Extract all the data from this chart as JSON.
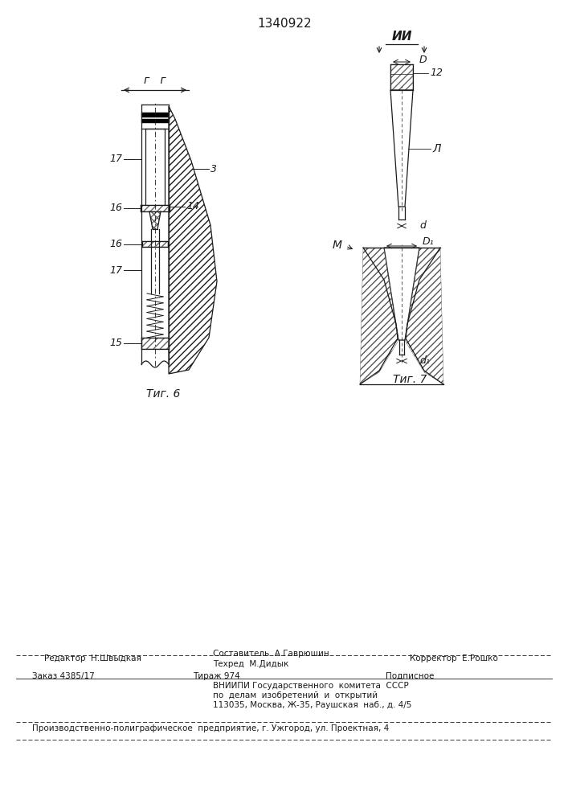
{
  "patent_number": "1340922",
  "fig6_label": "Τиг. 6",
  "fig7_label": "Τиг. 7",
  "section_g": "г   г",
  "section_II": "ИИ",
  "section_L": "Л",
  "section_M": "М",
  "dim_D": "D",
  "dim_d": "d",
  "dim_D1": "D₁",
  "dim_d1": "d₁",
  "lbl_17a": "17",
  "lbl_16a": "16",
  "lbl_16b": "16",
  "lbl_17b": "17",
  "lbl_15": "15",
  "lbl_3": "3",
  "lbl_14": "14",
  "lbl_12": "12",
  "footer_editor": "Редактор  Н.Швыдкая",
  "footer_sostavitel": "Составитель  А.Гаврюшин",
  "footer_tekhred": "Техред  М.Дидык",
  "footer_korrektor": "Корректор  Е.Рошко",
  "footer_zakaz": "Заказ 4385/17",
  "footer_tirazh": "Тираж 974",
  "footer_podpisnoe": "Подписное",
  "footer_vniipei": "ВНИИПИ Государственного  комитета  СССР",
  "footer_po_delam": "по  делам  изобретений  и  открытий",
  "footer_address": "113035, Москва, Ж-35, Раушская  наб., д. 4/5",
  "footer_poligraph": "Производственно-полиграфическое  предприятие, г. Ужгород, ул. Проектная, 4",
  "lc": "#1a1a1a",
  "lw": 0.9
}
